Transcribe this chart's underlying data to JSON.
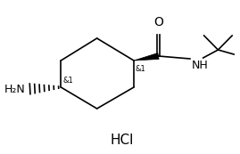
{
  "bg_color": "#ffffff",
  "hcl_text": "HCl",
  "o_text": "O",
  "nh_text": "NH",
  "h2n_text": "H₂N",
  "stereo1_text": "&1",
  "stereo2_text": "&1",
  "font_size_labels": 9,
  "font_size_hcl": 11,
  "line_color": "#000000"
}
